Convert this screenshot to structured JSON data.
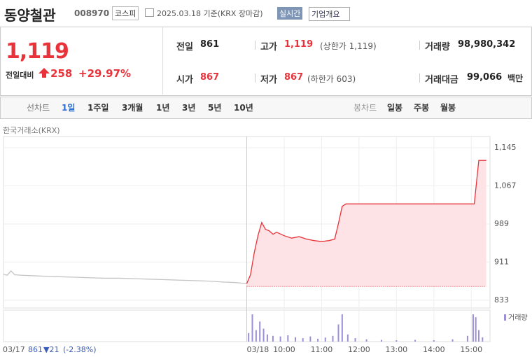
{
  "header": {
    "name": "동양철관",
    "code": "008970",
    "market": "코스피",
    "date": "2025.03.18 기준(KRX 장마감)",
    "realtime": "실시간",
    "company": "기업개요"
  },
  "quote": {
    "price": "1,119",
    "change_label": "전일대비",
    "change": "258",
    "change_pct": "+29.97%",
    "cells": [
      {
        "label": "전일",
        "value": "861"
      },
      {
        "label": "고가",
        "value": "1,119",
        "note": "(상한가 1,119)"
      },
      {
        "label": "거래량",
        "value": "98,980,342"
      },
      {
        "label": "시가",
        "value": "867"
      },
      {
        "label": "저가",
        "value": "867",
        "note": "(하한가 603)"
      },
      {
        "label": "거래대금",
        "value": "99,066",
        "unit": "백만"
      }
    ]
  },
  "tabs": {
    "line_label": "선차트",
    "line_items": [
      "1일",
      "1주일",
      "3개월",
      "1년",
      "3년",
      "5년",
      "10년"
    ],
    "active": 0,
    "candle_label": "봉차트",
    "candle_items": [
      "일봉",
      "주봉",
      "월봉"
    ]
  },
  "chart_data": {
    "type": "line",
    "source": "한국거래소(KRX)",
    "xlim": [
      -6.5,
      6.5
    ],
    "ylim": [
      817,
      1168
    ],
    "grid": true,
    "yticks": [
      {
        "value": 1145,
        "label": "1,145"
      },
      {
        "value": 1067,
        "label": "1,067"
      },
      {
        "value": 989,
        "label": "989"
      },
      {
        "value": 911,
        "label": "911"
      },
      {
        "value": 833,
        "label": "833"
      }
    ],
    "xticks": [
      {
        "value": -6.5,
        "label": "03/17"
      },
      {
        "value": 0,
        "label": "03/18"
      },
      {
        "value": 1,
        "label": "10:00"
      },
      {
        "value": 2,
        "label": "11:00"
      },
      {
        "value": 3,
        "label": "12:00"
      },
      {
        "value": 4,
        "label": "13:00"
      },
      {
        "value": 5,
        "label": "14:00"
      },
      {
        "value": 6,
        "label": "15:00"
      }
    ],
    "reference_line": 861,
    "reference_color": "#e8333a",
    "prev_close": "861",
    "prev_change": "▼21",
    "prev_change_pct": "(-2.38%)",
    "series": [
      {
        "color": "#c4c4c4",
        "x": [
          -6.5,
          -6.4,
          -6.3,
          -6.2,
          -6.0,
          -5.7,
          -5.4,
          -5.0,
          -4.6,
          -4.2,
          -3.8,
          -3.4,
          -3.0,
          -2.6,
          -2.2,
          -1.8,
          -1.4,
          -1.0,
          -0.6,
          -0.3,
          0
        ],
        "values": [
          886,
          884,
          893,
          885,
          884,
          883,
          882,
          881,
          880,
          879,
          878,
          878,
          877,
          876,
          875,
          874,
          873,
          872,
          870,
          869,
          867
        ]
      },
      {
        "color": "#e8333a",
        "fill": "#fde3e5",
        "x": [
          0,
          0.1,
          0.2,
          0.3,
          0.4,
          0.5,
          0.6,
          0.7,
          0.8,
          1.0,
          1.2,
          1.4,
          1.6,
          1.8,
          2.0,
          2.2,
          2.35,
          2.45,
          2.55,
          2.65,
          3.5,
          4.5,
          5.5,
          6.08,
          6.2,
          6.4
        ],
        "values": [
          867,
          885,
          930,
          965,
          992,
          978,
          975,
          968,
          972,
          965,
          960,
          963,
          958,
          955,
          953,
          955,
          958,
          990,
          1025,
          1030,
          1030,
          1030,
          1030,
          1030,
          1119,
          1119
        ]
      }
    ],
    "volume": {
      "label": "거래량",
      "color": "#9b8fd6",
      "vlim": [
        0,
        100
      ],
      "x": [
        0.05,
        0.15,
        0.25,
        0.35,
        0.45,
        0.55,
        0.7,
        0.9,
        1.1,
        1.3,
        1.5,
        1.7,
        1.9,
        2.1,
        2.3,
        2.45,
        2.55,
        2.7,
        2.9,
        3.2,
        3.6,
        4.0,
        4.5,
        5.0,
        5.5,
        5.9,
        6.05,
        6.12,
        6.2,
        6.3
      ],
      "values": [
        30,
        95,
        40,
        70,
        45,
        25,
        20,
        18,
        22,
        15,
        12,
        18,
        10,
        14,
        20,
        60,
        95,
        25,
        12,
        8,
        6,
        5,
        6,
        5,
        8,
        20,
        95,
        85,
        40,
        15
      ]
    }
  }
}
